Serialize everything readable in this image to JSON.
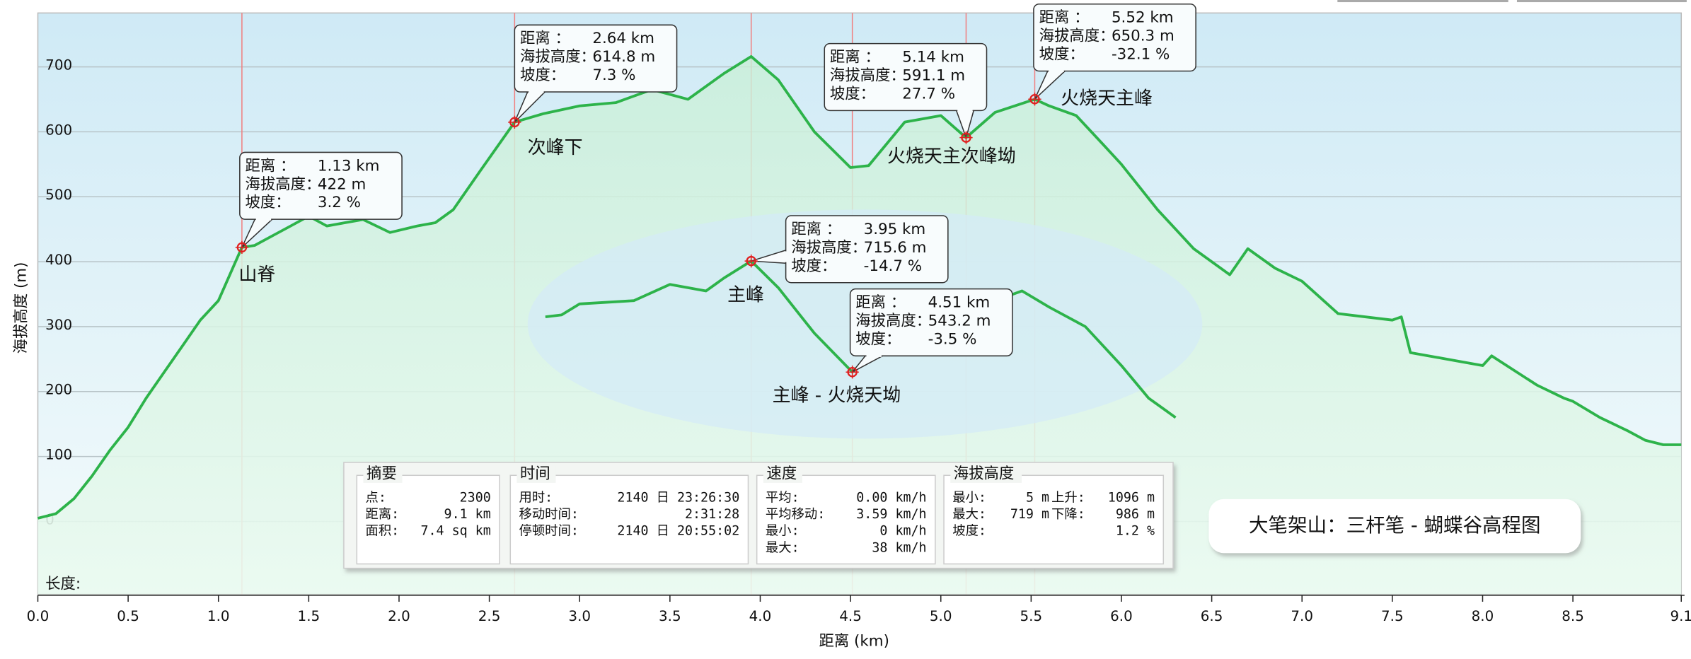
{
  "chart_data": {
    "type": "line",
    "title": "大笔架山：三杆笔 - 蝴蝶谷高程图",
    "x_label": "距离 (km)",
    "y_label": "海拔高度 (m)",
    "footer_label": "长度:",
    "xlim": [
      0,
      9.1
    ],
    "ylim": [
      -112,
      783
    ],
    "xticks": [
      {
        "value": 0,
        "label": "0.0"
      },
      0.5,
      {
        "value": 1,
        "label": "1.0"
      },
      1.5,
      {
        "value": 2,
        "label": "2.0"
      },
      2.5,
      {
        "value": 3,
        "label": "3.0"
      },
      3.5,
      {
        "value": 4,
        "label": "4.0"
      },
      4.5,
      {
        "value": 5,
        "label": "5.0"
      },
      5.5,
      {
        "value": 6,
        "label": "6.0"
      },
      6.5,
      {
        "value": 7,
        "label": "7.0"
      },
      7.5,
      {
        "value": 8,
        "label": "8.0"
      },
      8.5,
      9.1
    ],
    "yticks": [
      0,
      100,
      200,
      300,
      400,
      500,
      600,
      700
    ],
    "grid": true,
    "series": [
      {
        "color": "#2db34a",
        "x": [
          0,
          0.1,
          0.2,
          0.3,
          0.4,
          0.5,
          0.6,
          0.7,
          0.8,
          0.9,
          1.0,
          1.13,
          1.2,
          1.3,
          1.4,
          1.5,
          1.6,
          1.7,
          1.8,
          1.95,
          2.1,
          2.2,
          2.3,
          2.45,
          2.64,
          2.8,
          3.0,
          3.2,
          3.4,
          3.6,
          3.8,
          3.95,
          4.1,
          4.3,
          4.5,
          4.6,
          4.8,
          5.0,
          5.14,
          5.3,
          5.52,
          5.6,
          5.75,
          5.9,
          6.0,
          6.2,
          6.4,
          6.6,
          6.7,
          6.85,
          7.0,
          7.2,
          7.5,
          7.55,
          7.6,
          8.0,
          8.05,
          8.3,
          8.45,
          8.5,
          8.65,
          8.8,
          8.9,
          9.0,
          9.1
        ],
        "values": [
          5,
          12,
          35,
          70,
          110,
          145,
          190,
          230,
          270,
          310,
          340,
          422,
          425,
          440,
          455,
          470,
          455,
          460,
          465,
          445,
          455,
          460,
          480,
          540,
          615,
          628,
          640,
          645,
          665,
          650,
          690,
          716,
          680,
          600,
          545,
          548,
          615,
          625,
          591,
          630,
          650,
          640,
          625,
          580,
          550,
          480,
          420,
          380,
          420,
          390,
          370,
          320,
          310,
          315,
          260,
          240,
          255,
          210,
          190,
          185,
          160,
          140,
          125,
          118,
          118
        ]
      },
      {
        "color": "#2db34a",
        "x": [
          2.81,
          2.9,
          3.0,
          3.3,
          3.5,
          3.7,
          3.8,
          3.95,
          4.1,
          4.3,
          4.51,
          4.7,
          4.85,
          5.0,
          5.2,
          5.35,
          5.45,
          5.6,
          5.8,
          6.0,
          6.15,
          6.3
        ],
        "values": [
          315,
          318,
          335,
          340,
          365,
          355,
          375,
          401,
          360,
          290,
          230,
          280,
          295,
          320,
          330,
          345,
          355,
          330,
          300,
          240,
          190,
          160
        ]
      }
    ],
    "callout_fields": [
      "距离 ：",
      "海拔高度：",
      "坡度："
    ],
    "annotations": [
      {
        "name": "山脊",
        "x": 1.13,
        "elevation": 422,
        "slope": 3.2,
        "distance_label": "1.13 km",
        "elevation_label": "422 m",
        "slope_label": "3.2 %",
        "on": 0
      },
      {
        "name": "次峰下",
        "x": 2.64,
        "elevation": 614.8,
        "slope": 7.3,
        "distance_label": "2.64 km",
        "elevation_label": "614.8 m",
        "slope_label": "7.3 %",
        "on": 0
      },
      {
        "name": "主峰",
        "x": 3.95,
        "elevation": 715.6,
        "slope": -14.7,
        "distance_label": "3.95 km",
        "elevation_label": "715.6 m",
        "slope_label": "-14.7 %",
        "on": 1
      },
      {
        "name": "主峰 - 火烧天坳",
        "x": 4.51,
        "elevation": 543.2,
        "slope": -3.5,
        "distance_label": "4.51 km",
        "elevation_label": "543.2 m",
        "slope_label": "-3.5 %",
        "on": 1
      },
      {
        "name": "火烧天主次峰坳",
        "x": 5.14,
        "elevation": 591.1,
        "slope": 27.7,
        "distance_label": "5.14 km",
        "elevation_label": "591.1 m",
        "slope_label": "27.7 %",
        "on": 0
      },
      {
        "name": "火烧天主峰",
        "x": 5.52,
        "elevation": 650.3,
        "slope": -32.1,
        "distance_label": "5.52 km",
        "elevation_label": "650.3 m",
        "slope_label": "-32.1 %",
        "on": 0
      }
    ],
    "summary": [
      {
        "title": "摘要",
        "rows": [
          [
            "点:",
            "2300"
          ],
          [
            "距离:",
            "9.1 km"
          ],
          [
            "面积:",
            "7.4 sq km"
          ]
        ]
      },
      {
        "title": "时间",
        "rows": [
          [
            "用时:",
            "2140 日 23:26:30"
          ],
          [
            "移动时间:",
            "2:31:28"
          ],
          [
            "停顿时间:",
            "2140 日 20:55:02"
          ]
        ]
      },
      {
        "title": "速度",
        "rows": [
          [
            "平均:",
            "0.00 km/h"
          ],
          [
            "平均移动:",
            "3.59 km/h"
          ],
          [
            "最小:",
            "0 km/h"
          ],
          [
            "最大:",
            "38 km/h"
          ]
        ]
      },
      {
        "title": "海拔高度",
        "rows": [
          [
            "最小:",
            "5 m",
            "上升:",
            "1096 m"
          ],
          [
            "最大:",
            "719 m",
            "下降:",
            "986 m"
          ],
          [
            "坡度:",
            "1.2 %"
          ]
        ]
      }
    ]
  }
}
